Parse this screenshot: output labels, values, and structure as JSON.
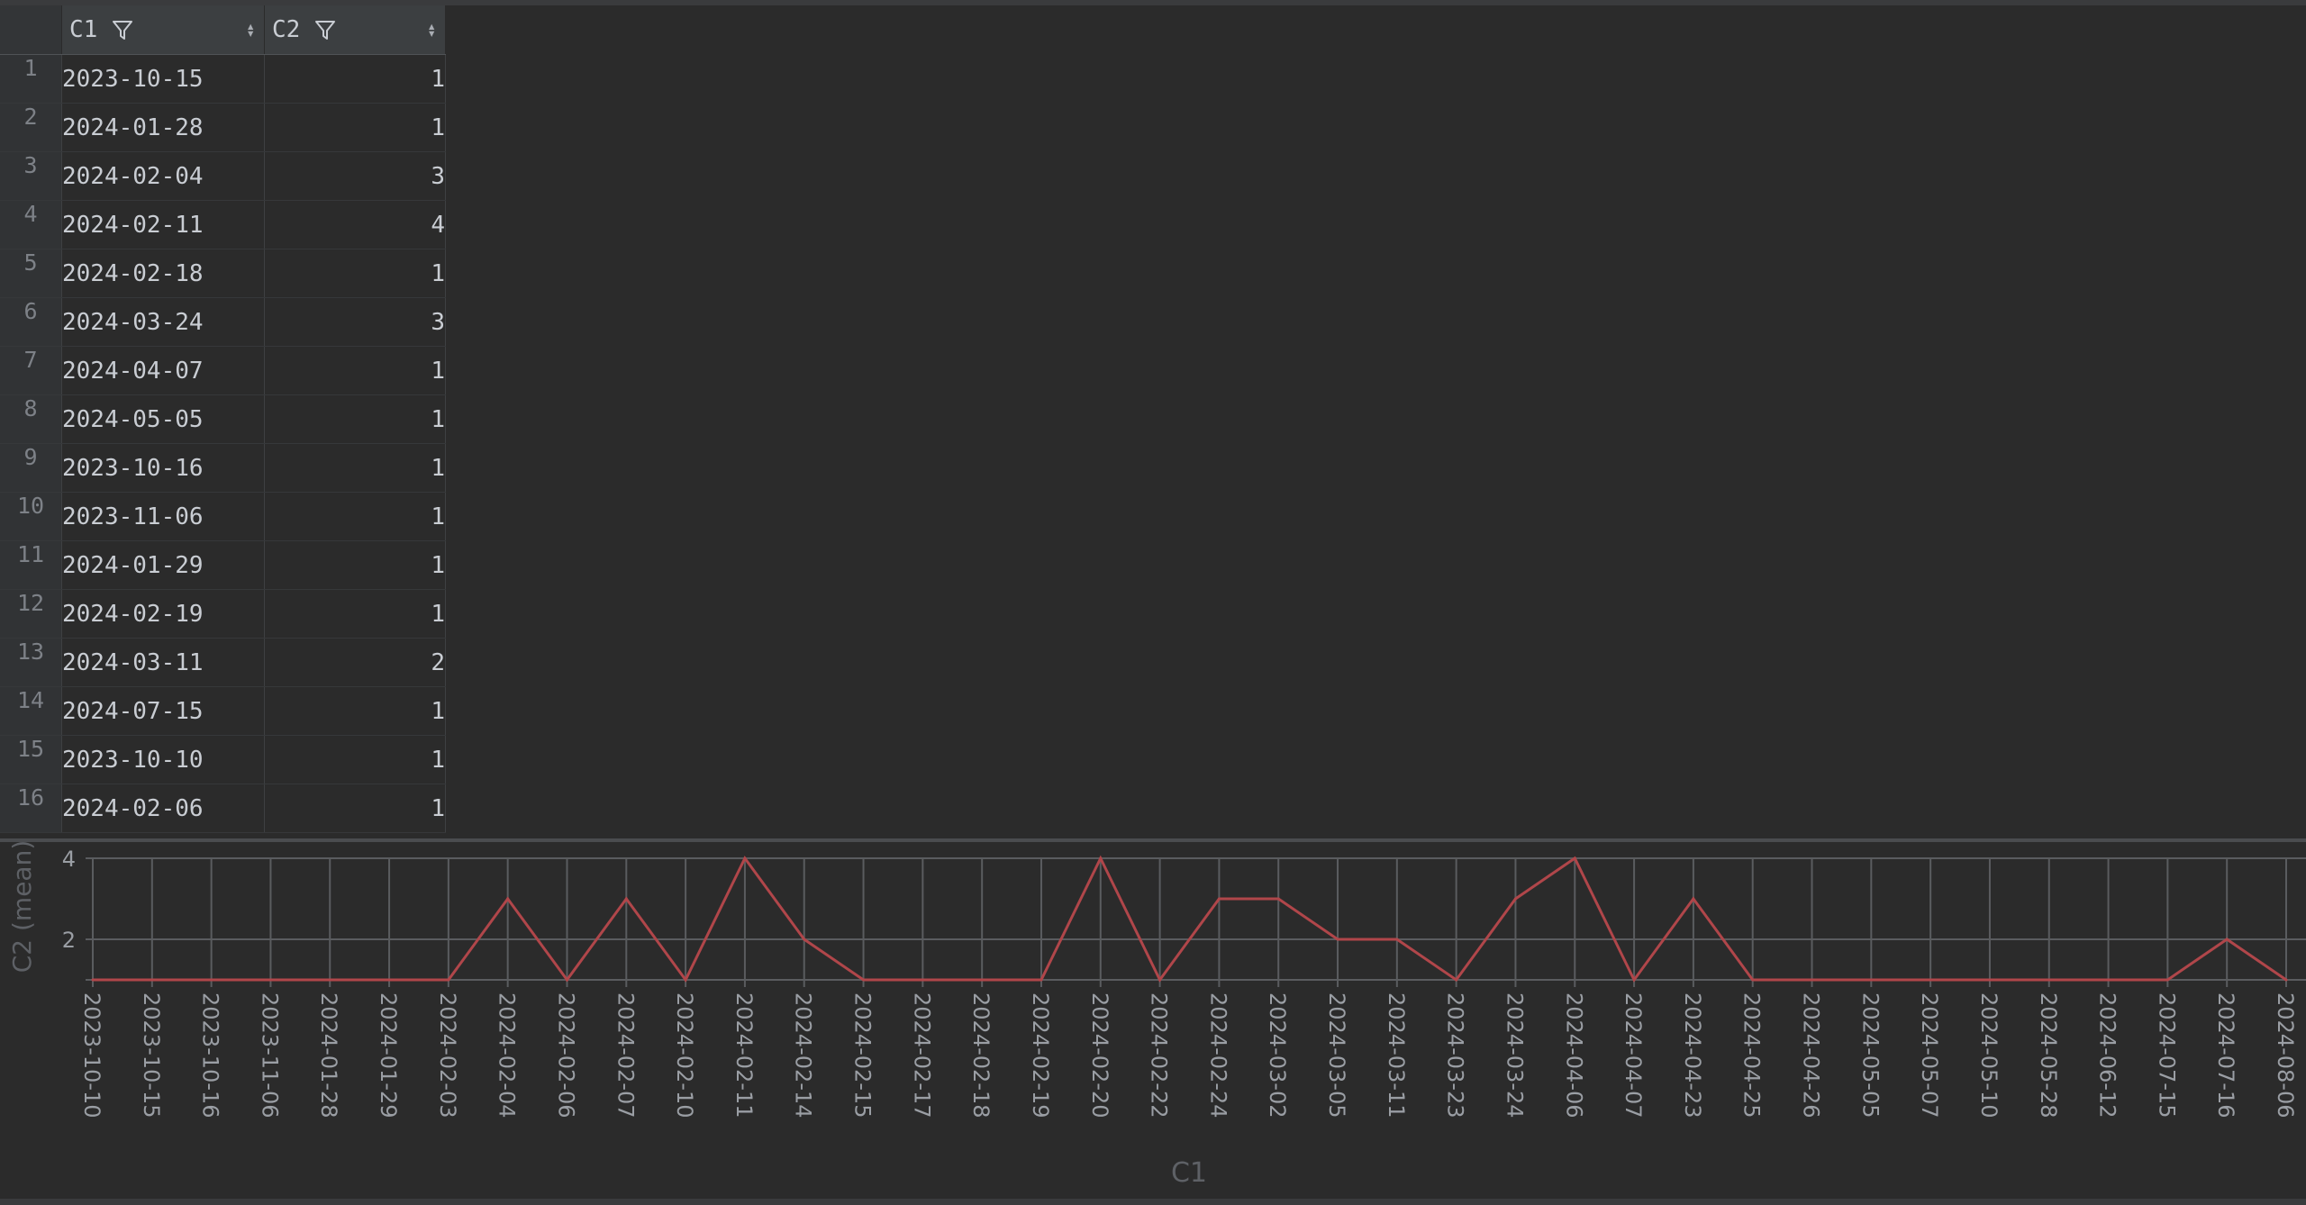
{
  "table": {
    "columns": [
      {
        "label": "C1",
        "filter_icon": "filter-icon",
        "sort_icon": "sort-icon"
      },
      {
        "label": "C2",
        "filter_icon": "filter-icon",
        "sort_icon": "sort-icon"
      }
    ],
    "rows": [
      {
        "num": "1",
        "c1": "2023-10-15",
        "c2": "1"
      },
      {
        "num": "2",
        "c1": "2024-01-28",
        "c2": "1"
      },
      {
        "num": "3",
        "c1": "2024-02-04",
        "c2": "3"
      },
      {
        "num": "4",
        "c1": "2024-02-11",
        "c2": "4"
      },
      {
        "num": "5",
        "c1": "2024-02-18",
        "c2": "1"
      },
      {
        "num": "6",
        "c1": "2024-03-24",
        "c2": "3"
      },
      {
        "num": "7",
        "c1": "2024-04-07",
        "c2": "1"
      },
      {
        "num": "8",
        "c1": "2024-05-05",
        "c2": "1"
      },
      {
        "num": "9",
        "c1": "2023-10-16",
        "c2": "1"
      },
      {
        "num": "10",
        "c1": "2023-11-06",
        "c2": "1"
      },
      {
        "num": "11",
        "c1": "2024-01-29",
        "c2": "1"
      },
      {
        "num": "12",
        "c1": "2024-02-19",
        "c2": "1"
      },
      {
        "num": "13",
        "c1": "2024-03-11",
        "c2": "2"
      },
      {
        "num": "14",
        "c1": "2024-07-15",
        "c2": "1"
      },
      {
        "num": "15",
        "c1": "2023-10-10",
        "c2": "1"
      },
      {
        "num": "16",
        "c1": "2024-02-06",
        "c2": "1"
      }
    ]
  },
  "chart_data": {
    "type": "line",
    "xlabel": "C1",
    "ylabel": "C2 (mean)",
    "ylim": [
      1,
      4
    ],
    "yticks": [
      "2",
      "4"
    ],
    "grid": true,
    "colors": {
      "line": "#b0464a",
      "grid": "#5a5c5f",
      "axis_text": "#9a9ea4",
      "axis_title": "#5e6166"
    },
    "x": [
      "2023-10-10",
      "2023-10-15",
      "2023-10-16",
      "2023-11-06",
      "2024-01-28",
      "2024-01-29",
      "2024-02-03",
      "2024-02-04",
      "2024-02-06",
      "2024-02-07",
      "2024-02-10",
      "2024-02-11",
      "2024-02-14",
      "2024-02-15",
      "2024-02-17",
      "2024-02-18",
      "2024-02-19",
      "2024-02-20",
      "2024-02-22",
      "2024-02-24",
      "2024-03-02",
      "2024-03-05",
      "2024-03-11",
      "2024-03-23",
      "2024-03-24",
      "2024-04-06",
      "2024-04-07",
      "2024-04-23",
      "2024-04-25",
      "2024-04-26",
      "2024-05-05",
      "2024-05-07",
      "2024-05-10",
      "2024-05-28",
      "2024-06-12",
      "2024-07-15",
      "2024-07-16",
      "2024-08-06"
    ],
    "series": [
      {
        "values": [
          1,
          1,
          1,
          1,
          1,
          1,
          1,
          3,
          1,
          3,
          1,
          4,
          2,
          1,
          1,
          1,
          1,
          4,
          1,
          3,
          3,
          2,
          2,
          1,
          3,
          4,
          1,
          3,
          1,
          1,
          1,
          1,
          1,
          1,
          1,
          1,
          2,
          1
        ]
      }
    ]
  }
}
